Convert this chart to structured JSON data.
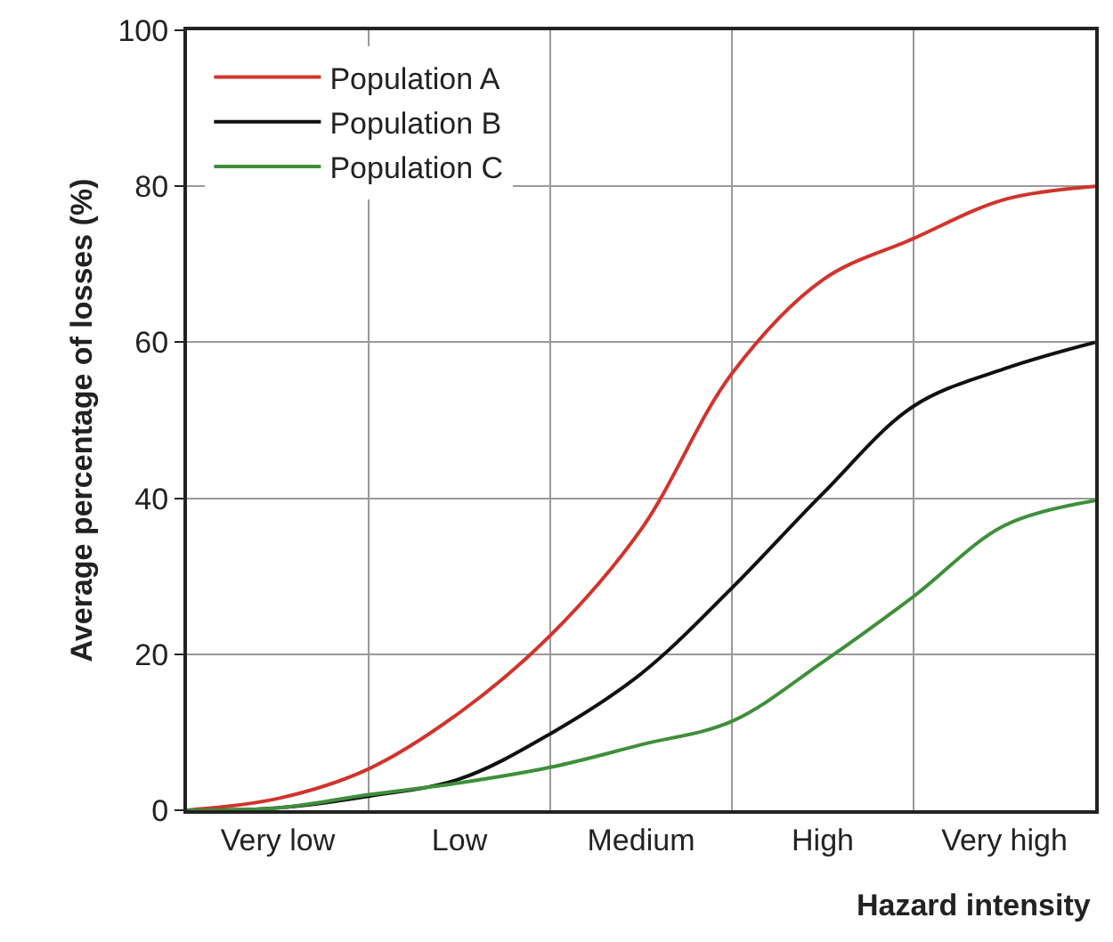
{
  "chart_data": {
    "type": "line",
    "xlabel": "Hazard intensity",
    "ylabel": "Average percentage of losses (%)",
    "categories": [
      null,
      "Very low",
      null,
      "Low",
      null,
      "Medium",
      null,
      "High",
      null,
      "Very high",
      null
    ],
    "series": [
      {
        "name": "Population A",
        "color": "#d0342c",
        "values": [
          0,
          1.5,
          5.3,
          12.5,
          22.4,
          36,
          56,
          68,
          73.3,
          78.3,
          80
        ]
      },
      {
        "name": "Population B",
        "color": "#111111",
        "values": [
          0,
          0.3,
          1.8,
          4,
          9.8,
          17.5,
          28.5,
          40.6,
          51.8,
          56.6,
          60
        ]
      },
      {
        "name": "Population C",
        "color": "#3f8f3a",
        "values": [
          0,
          0.3,
          2,
          3.5,
          5.5,
          8.4,
          11.4,
          19,
          27.4,
          36.5,
          39.7
        ]
      }
    ],
    "ylim": [
      0,
      100
    ],
    "yticks": [
      0,
      20,
      40,
      60,
      80,
      100
    ],
    "grid": true,
    "legend": "top left",
    "marker": "none",
    "line_style": "solid"
  }
}
